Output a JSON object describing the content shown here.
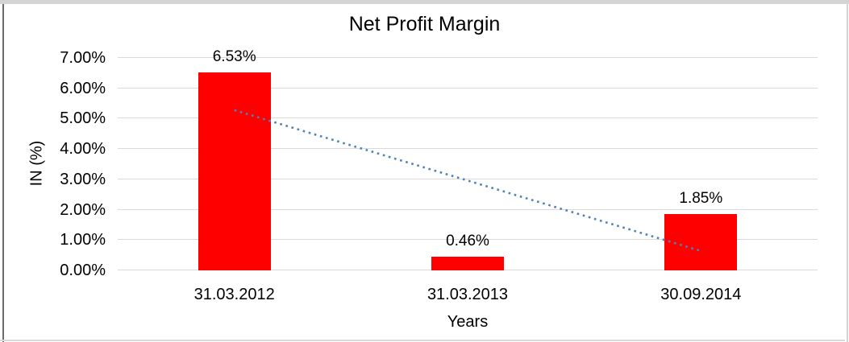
{
  "chart_data": {
    "type": "bar",
    "title": "Net Profit Margin",
    "xlabel": "Years",
    "ylabel": "IN (%)",
    "categories": [
      "31.03.2012",
      "31.03.2013",
      "30.09.2014"
    ],
    "values": [
      6.53,
      0.46,
      1.85
    ],
    "value_labels": [
      "6.53%",
      "0.46%",
      "1.85%"
    ],
    "ylim": [
      0,
      7
    ],
    "ytick_labels": [
      "0.00%",
      "1.00%",
      "2.00%",
      "3.00%",
      "4.00%",
      "5.00%",
      "6.00%",
      "7.00%"
    ],
    "grid": true,
    "legend": "none",
    "bar_color": "#FF0000",
    "gridline_color": "#D9D9D9",
    "trendline": {
      "type": "linear",
      "style": "dotted",
      "color": "#4E81BD",
      "start_value": 5.28,
      "end_value": 0.64
    }
  }
}
